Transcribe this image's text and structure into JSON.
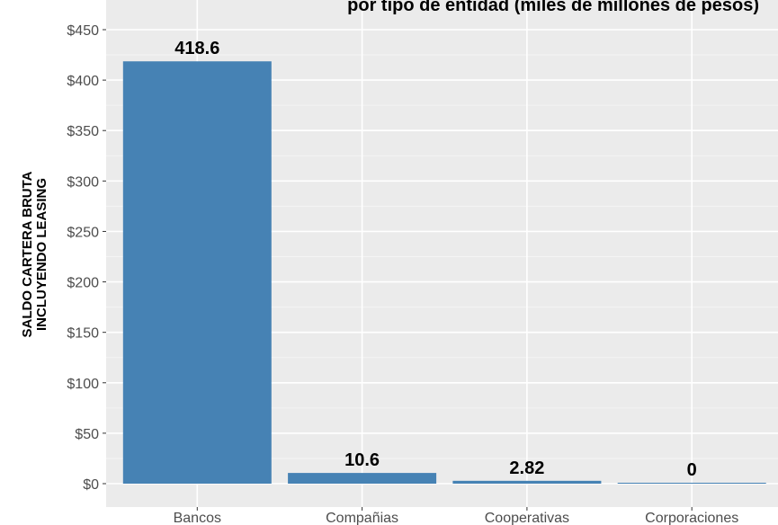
{
  "chart_data": {
    "type": "bar",
    "title": "",
    "title_visible_fragment": "por tipo de entidad (miles de millones de pesos)",
    "xlabel": "",
    "ylabel_lines": [
      "SALDO CARTERA BRUTA",
      "INCLUYENDO LEASING"
    ],
    "categories": [
      "Bancos",
      "Compañias",
      "Cooperativas",
      "Corporaciones"
    ],
    "values": [
      418.6,
      10.6,
      2.82,
      0
    ],
    "data_labels": [
      "418.6",
      "10.6",
      "2.82",
      "0"
    ],
    "ylim": [
      0,
      450
    ],
    "yticks": [
      0,
      50,
      100,
      150,
      200,
      250,
      300,
      350,
      400,
      450
    ],
    "ytick_labels": [
      "$0",
      "$50",
      "$100",
      "$150",
      "$200",
      "$250",
      "$300",
      "$350",
      "$400",
      "$450"
    ],
    "grid": true,
    "legend": "none",
    "colors": {
      "bar": "#4682b4",
      "panel_bg": "#ebebeb",
      "grid_major": "#ffffff",
      "grid_minor": "#f4f4f4",
      "tick_text": "#4d4d4d"
    }
  }
}
